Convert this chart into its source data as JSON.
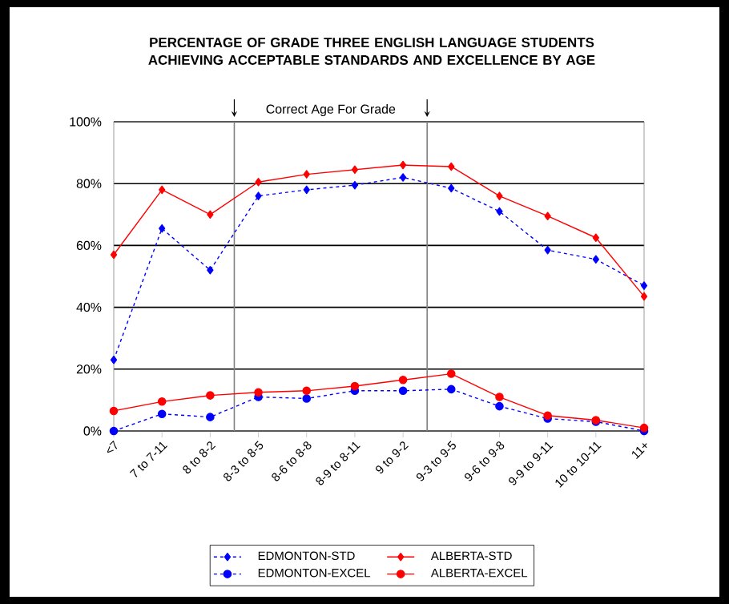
{
  "chart_data": {
    "type": "line",
    "title": "PERCENTAGE OF GRADE THREE ENGLISH LANGUAGE STUDENTS ACHIEVING ACCEPTABLE STANDARDS AND EXCELLENCE BY AGE",
    "categories": [
      "<7",
      "7 to 7-11",
      "8 to 8-2",
      "8-3 to 8-5",
      "8-6 to 8-8",
      "8-9 to 8-11",
      "9 to 9-2",
      "9-3 to 9-5",
      "9-6 to 9-8",
      "9-9 to 9-11",
      "10 to 10-11",
      "11+"
    ],
    "series": [
      {
        "name": "EDMONTON-STD",
        "color": "#0000ff",
        "marker": "diamond",
        "line_style": "dashed",
        "values": [
          23,
          65.5,
          52,
          76,
          78,
          79.5,
          82,
          78.5,
          71,
          58.5,
          55.5,
          47
        ]
      },
      {
        "name": "ALBERTA-STD",
        "color": "#ff0000",
        "marker": "diamond",
        "line_style": "solid",
        "values": [
          57,
          78,
          70,
          80.5,
          83,
          84.5,
          86,
          85.5,
          76,
          69.5,
          62.5,
          43.5
        ]
      },
      {
        "name": "EDMONTON-EXCEL",
        "color": "#0000ff",
        "marker": "circle",
        "line_style": "dashed",
        "values": [
          0,
          5.5,
          4.5,
          11,
          10.5,
          13,
          13,
          13.5,
          8,
          4,
          3,
          0
        ]
      },
      {
        "name": "ALBERTA-EXCEL",
        "color": "#ff0000",
        "marker": "circle",
        "line_style": "solid",
        "values": [
          6.5,
          9.5,
          11.5,
          12.5,
          13,
          14.5,
          16.5,
          18.5,
          11,
          5,
          3.5,
          1
        ]
      }
    ],
    "ylim": [
      0,
      100
    ],
    "yticks": [
      {
        "value": 0,
        "label": "0%"
      },
      {
        "value": 20,
        "label": "20%"
      },
      {
        "value": 40,
        "label": "40%"
      },
      {
        "value": 60,
        "label": "60%"
      },
      {
        "value": 80,
        "label": "80%"
      },
      {
        "value": 100,
        "label": "100%"
      }
    ],
    "grid": "y",
    "legend": "bottom",
    "annotations": [
      "Correct Age For Grade"
    ]
  }
}
